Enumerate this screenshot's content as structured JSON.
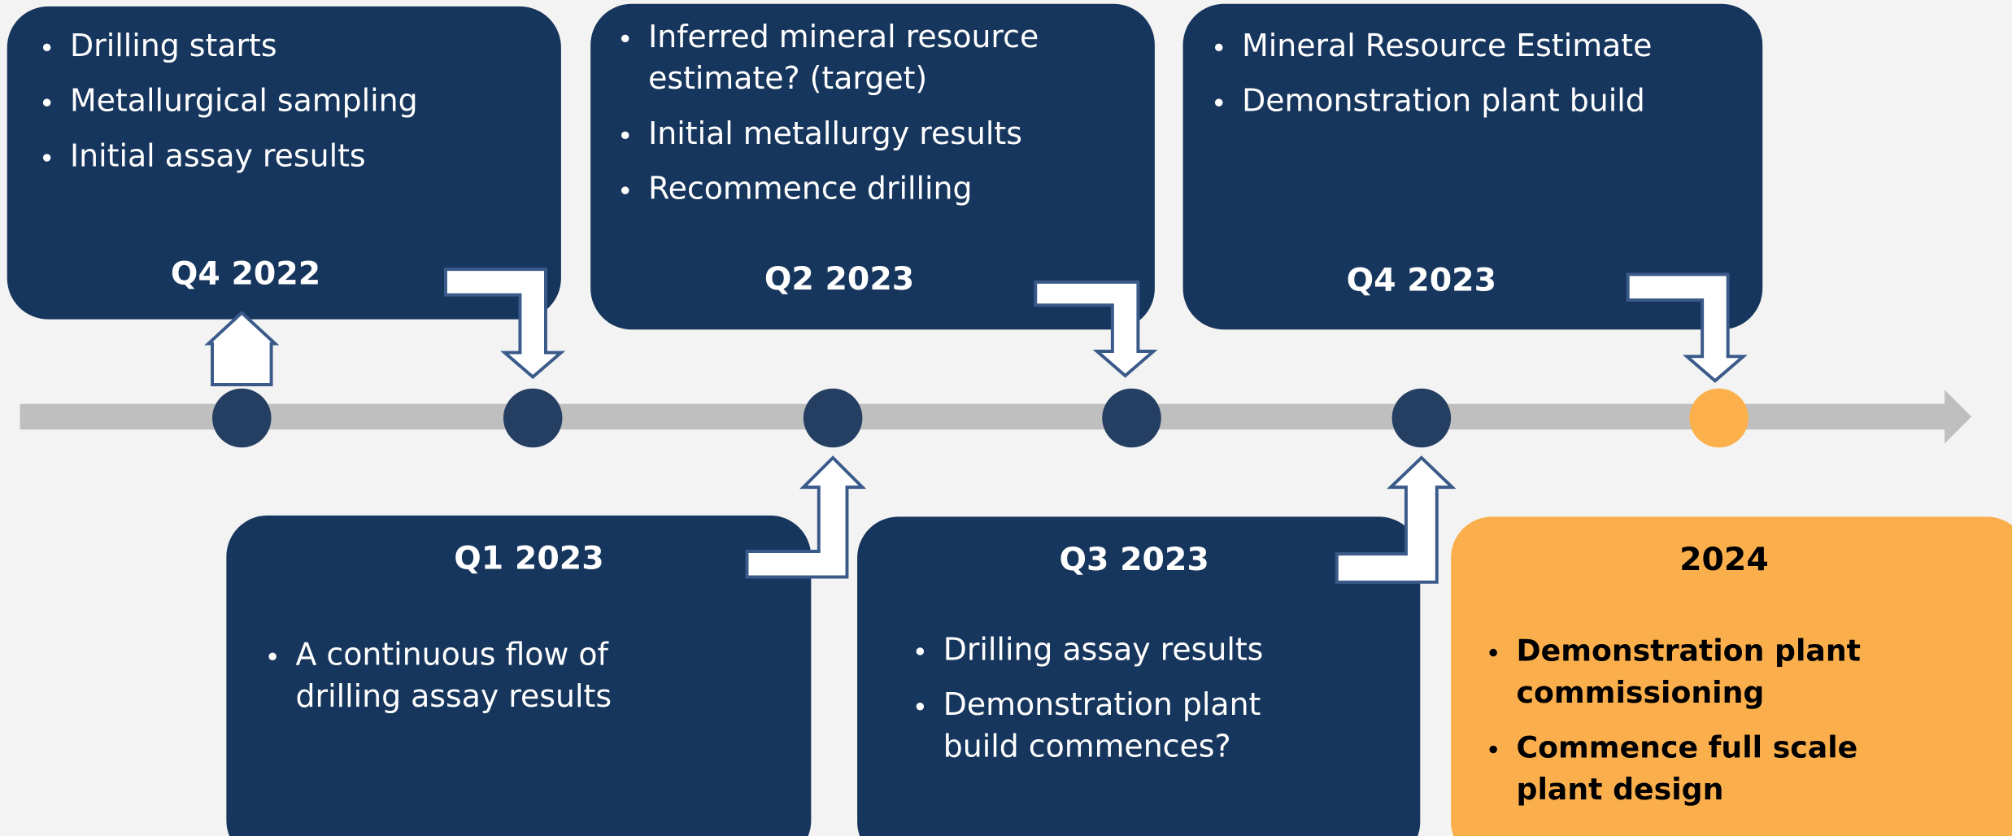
{
  "milestones": [
    {
      "label": "Q4 2022",
      "items": [
        [
          "Drilling starts"
        ],
        [
          "Metallurgical sampling"
        ],
        [
          "Initial assay results"
        ]
      ]
    },
    {
      "label": "Q1 2023",
      "items": [
        [
          "A continuous flow of",
          "drilling assay results"
        ]
      ]
    },
    {
      "label": "Q2 2023",
      "items": [
        [
          "Inferred mineral resource",
          "estimate? (target)"
        ],
        [
          "Initial metallurgy results"
        ],
        [
          "Recommence drilling"
        ]
      ]
    },
    {
      "label": "Q3 2023",
      "items": [
        [
          "Drilling assay results"
        ],
        [
          "Demonstration plant",
          "build commences?"
        ]
      ]
    },
    {
      "label": "Q4 2023",
      "items": [
        [
          "Mineral Resource Estimate"
        ],
        [
          "Demonstration plant build"
        ]
      ]
    },
    {
      "label": "2024",
      "items": [
        [
          "Demonstration plant",
          "commissioning"
        ],
        [
          "Commence full scale",
          "plant design"
        ]
      ]
    }
  ]
}
